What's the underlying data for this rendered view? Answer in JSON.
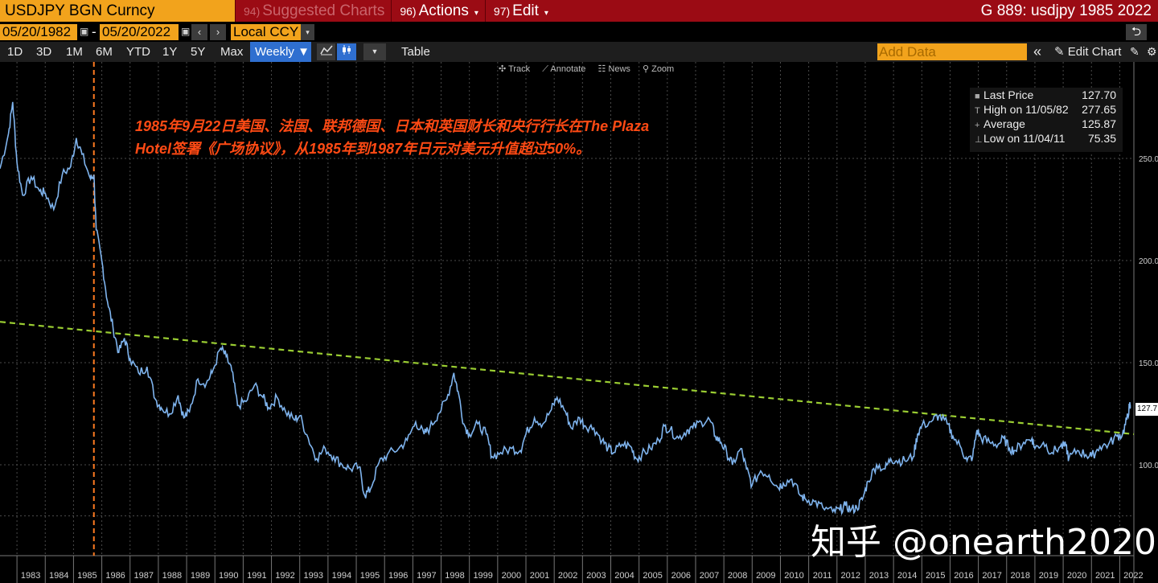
{
  "titlebar": {
    "ticker": "USDJPY BGN Curncy",
    "menu": [
      {
        "num": "94)",
        "label": "Suggested Charts",
        "dim": true
      },
      {
        "num": "96)",
        "label": "Actions",
        "caret": "▾"
      },
      {
        "num": "97)",
        "label": "Edit",
        "caret": "▾"
      }
    ],
    "right_title": "G 889: usdjpy 1985 2022"
  },
  "datebar": {
    "start_date": "05/20/1982",
    "end_date": "05/20/2022",
    "dash": "-",
    "prev": "‹",
    "next": "›",
    "currency": "Local CCY",
    "dropdown": "▾",
    "undo": "⮌"
  },
  "rangebar": {
    "ranges": [
      "1D",
      "3D",
      "1M",
      "6M",
      "YTD",
      "1Y",
      "5Y",
      "Max"
    ],
    "frequency": "Weekly ▼",
    "table_label": "Table",
    "add_data_placeholder": "Add Data",
    "collapse": "«",
    "edit_chart": "✎ Edit Chart",
    "icons": [
      "line-chart-icon",
      "candlestick-icon",
      "chevron-down-icon",
      "edit-icon",
      "gear-icon"
    ]
  },
  "toolbox": [
    "✣ Track",
    "⟋ Annotate",
    "☷ News",
    "⚲ Zoom"
  ],
  "legend": {
    "rows": [
      {
        "marker": "■",
        "label": "Last Price",
        "value": "127.70"
      },
      {
        "marker": "T",
        "label": "High on 11/05/82",
        "value": "277.65"
      },
      {
        "marker": "+",
        "label": "Average",
        "value": "125.87"
      },
      {
        "marker": "⊥",
        "label": "Low on 11/04/11",
        "value": "75.35"
      }
    ]
  },
  "annotation": {
    "line1": "1985年9月22日美国、法国、联邦德国、日本和英国财长和央行行长在The Plaza",
    "line2": "Hotel签署《广场协议》，从1985年到1987年日元对美元升值超过50%。"
  },
  "watermark": "知乎 @onearth2020",
  "last_price_tag": "127.7",
  "chart_data": {
    "type": "line",
    "title": "",
    "xlabel": "",
    "ylabel": "",
    "x_ticks": [
      "1983",
      "1984",
      "1985",
      "1986",
      "1987",
      "1988",
      "1989",
      "1990",
      "1991",
      "1992",
      "1993",
      "1994",
      "1995",
      "1996",
      "1997",
      "1998",
      "1999",
      "2000",
      "2001",
      "2002",
      "2003",
      "2004",
      "2005",
      "2006",
      "2007",
      "2008",
      "2009",
      "2010",
      "2011",
      "2012",
      "2013",
      "2014",
      "2015",
      "2016",
      "2017",
      "2018",
      "2019",
      "2020",
      "2021",
      "2022"
    ],
    "y_ticks": [
      "250.0",
      "200.0",
      "150.0",
      "100.0"
    ],
    "ylim": [
      75,
      285
    ],
    "xlim": [
      1982.4,
      2022.5
    ],
    "grid": true,
    "series": [
      {
        "color": "#7fb4ee",
        "points": [
          [
            1982.4,
            245
          ],
          [
            1982.7,
            262
          ],
          [
            1982.85,
            277.65
          ],
          [
            1983.0,
            248
          ],
          [
            1983.2,
            232
          ],
          [
            1983.5,
            241
          ],
          [
            1983.8,
            234
          ],
          [
            1984.0,
            233
          ],
          [
            1984.3,
            225
          ],
          [
            1984.6,
            242
          ],
          [
            1984.9,
            246
          ],
          [
            1985.1,
            260
          ],
          [
            1985.3,
            252
          ],
          [
            1985.6,
            240
          ],
          [
            1985.72,
            242
          ],
          [
            1985.8,
            215
          ],
          [
            1986.0,
            200
          ],
          [
            1986.2,
            180
          ],
          [
            1986.4,
            167
          ],
          [
            1986.6,
            155
          ],
          [
            1986.8,
            162
          ],
          [
            1987.0,
            152
          ],
          [
            1987.3,
            145
          ],
          [
            1987.6,
            148
          ],
          [
            1987.9,
            132
          ],
          [
            1988.1,
            128
          ],
          [
            1988.4,
            125
          ],
          [
            1988.7,
            134
          ],
          [
            1988.9,
            123
          ],
          [
            1989.1,
            126
          ],
          [
            1989.4,
            142
          ],
          [
            1989.7,
            140
          ],
          [
            1989.9,
            145
          ],
          [
            1990.2,
            157
          ],
          [
            1990.4,
            153
          ],
          [
            1990.6,
            146
          ],
          [
            1990.8,
            129
          ],
          [
            1991.1,
            131
          ],
          [
            1991.4,
            139
          ],
          [
            1991.7,
            133
          ],
          [
            1991.9,
            128
          ],
          [
            1992.2,
            133
          ],
          [
            1992.5,
            126
          ],
          [
            1992.8,
            122
          ],
          [
            1993.0,
            124
          ],
          [
            1993.3,
            113
          ],
          [
            1993.6,
            103
          ],
          [
            1993.9,
            108
          ],
          [
            1994.2,
            104
          ],
          [
            1994.5,
            100
          ],
          [
            1994.8,
            98
          ],
          [
            1995.1,
            99
          ],
          [
            1995.3,
            85
          ],
          [
            1995.5,
            88
          ],
          [
            1995.8,
            101
          ],
          [
            1996.1,
            105
          ],
          [
            1996.5,
            108
          ],
          [
            1996.8,
            112
          ],
          [
            1997.1,
            121
          ],
          [
            1997.4,
            115
          ],
          [
            1997.6,
            118
          ],
          [
            1997.9,
            125
          ],
          [
            1998.2,
            132
          ],
          [
            1998.45,
            145
          ],
          [
            1998.6,
            136
          ],
          [
            1998.8,
            120
          ],
          [
            1999.0,
            115
          ],
          [
            1999.3,
            120
          ],
          [
            1999.6,
            115
          ],
          [
            1999.8,
            104
          ],
          [
            2000.1,
            106
          ],
          [
            2000.5,
            108
          ],
          [
            2000.8,
            107
          ],
          [
            2001.0,
            115
          ],
          [
            2001.3,
            123
          ],
          [
            2001.6,
            120
          ],
          [
            2001.9,
            127
          ],
          [
            2002.1,
            133
          ],
          [
            2002.4,
            126
          ],
          [
            2002.6,
            118
          ],
          [
            2002.9,
            123
          ],
          [
            2003.1,
            119
          ],
          [
            2003.4,
            118
          ],
          [
            2003.7,
            112
          ],
          [
            2003.9,
            108
          ],
          [
            2004.1,
            106
          ],
          [
            2004.4,
            110
          ],
          [
            2004.7,
            109
          ],
          [
            2004.9,
            103
          ],
          [
            2005.1,
            105
          ],
          [
            2005.4,
            108
          ],
          [
            2005.7,
            112
          ],
          [
            2005.9,
            119
          ],
          [
            2006.1,
            117
          ],
          [
            2006.4,
            113
          ],
          [
            2006.7,
            117
          ],
          [
            2006.9,
            118
          ],
          [
            2007.2,
            121
          ],
          [
            2007.5,
            122
          ],
          [
            2007.7,
            114
          ],
          [
            2007.9,
            111
          ],
          [
            2008.1,
            106
          ],
          [
            2008.3,
            100
          ],
          [
            2008.6,
            108
          ],
          [
            2008.8,
            98
          ],
          [
            2009.0,
            90
          ],
          [
            2009.3,
            97
          ],
          [
            2009.6,
            95
          ],
          [
            2009.9,
            89
          ],
          [
            2010.1,
            91
          ],
          [
            2010.4,
            93
          ],
          [
            2010.7,
            85
          ],
          [
            2010.9,
            83
          ],
          [
            2011.2,
            82
          ],
          [
            2011.5,
            79
          ],
          [
            2011.85,
            77
          ],
          [
            2012.1,
            78
          ],
          [
            2012.3,
            80
          ],
          [
            2012.5,
            78
          ],
          [
            2012.7,
            79
          ],
          [
            2012.9,
            83
          ],
          [
            2013.1,
            92
          ],
          [
            2013.4,
            100
          ],
          [
            2013.7,
            98
          ],
          [
            2013.9,
            103
          ],
          [
            2014.1,
            102
          ],
          [
            2014.4,
            102
          ],
          [
            2014.7,
            104
          ],
          [
            2014.85,
            115
          ],
          [
            2015.0,
            119
          ],
          [
            2015.4,
            122
          ],
          [
            2015.6,
            124
          ],
          [
            2015.9,
            120
          ],
          [
            2016.1,
            114
          ],
          [
            2016.4,
            108
          ],
          [
            2016.6,
            102
          ],
          [
            2016.8,
            104
          ],
          [
            2016.95,
            117
          ],
          [
            2017.1,
            113
          ],
          [
            2017.4,
            111
          ],
          [
            2017.7,
            110
          ],
          [
            2017.9,
            113
          ],
          [
            2018.1,
            108
          ],
          [
            2018.3,
            107
          ],
          [
            2018.6,
            111
          ],
          [
            2018.9,
            113
          ],
          [
            2019.0,
            108
          ],
          [
            2019.3,
            111
          ],
          [
            2019.6,
            106
          ],
          [
            2019.9,
            109
          ],
          [
            2020.1,
            109
          ],
          [
            2020.2,
            103
          ],
          [
            2020.5,
            107
          ],
          [
            2020.8,
            105
          ],
          [
            2021.0,
            104
          ],
          [
            2021.3,
            109
          ],
          [
            2021.6,
            110
          ],
          [
            2021.9,
            114
          ],
          [
            2022.1,
            115
          ],
          [
            2022.25,
            122
          ],
          [
            2022.35,
            129
          ],
          [
            2022.38,
            127.7
          ]
        ]
      }
    ],
    "trendline": {
      "color": "#9acd32",
      "points": [
        [
          1982.4,
          170
        ],
        [
          2022.5,
          115
        ]
      ]
    },
    "event_line": {
      "x": 1985.72,
      "color": "#ff7a20"
    }
  }
}
